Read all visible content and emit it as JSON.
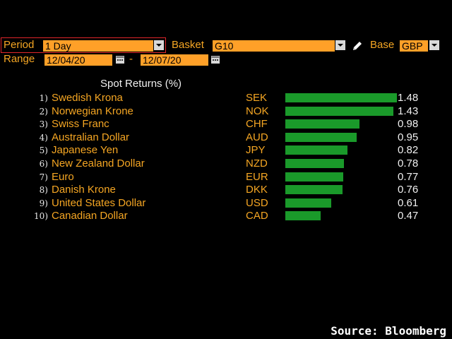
{
  "toolbar": {
    "period_label": "Period",
    "period_value": "1 Day",
    "basket_label": "Basket",
    "basket_value": "G10",
    "base_label": "Base",
    "base_value": "GBP",
    "range_label": "Range",
    "range_start": "12/04/20",
    "range_separator": "-",
    "range_end": "12/07/20"
  },
  "chart_data": {
    "type": "bar",
    "title": "Spot Returns (%)",
    "categories": [
      "Swedish Krona",
      "Norwegian Krone",
      "Swiss Franc",
      "Australian Dollar",
      "Japanese Yen",
      "New Zealand Dollar",
      "Euro",
      "Danish Krone",
      "United States Dollar",
      "Canadian Dollar"
    ],
    "ranks": [
      "1)",
      "2)",
      "3)",
      "4)",
      "5)",
      "6)",
      "7)",
      "8)",
      "9)",
      "10)"
    ],
    "codes": [
      "SEK",
      "NOK",
      "CHF",
      "AUD",
      "JPY",
      "NZD",
      "EUR",
      "DKK",
      "USD",
      "CAD"
    ],
    "values": [
      1.48,
      1.43,
      0.98,
      0.95,
      0.82,
      0.78,
      0.77,
      0.76,
      0.61,
      0.47
    ],
    "value_labels": [
      "1.48",
      "1.43",
      "0.98",
      "0.95",
      "0.82",
      "0.78",
      "0.77",
      "0.76",
      "0.61",
      "0.47"
    ],
    "bar_color": "#1a9a2a"
  },
  "colors": {
    "background": "#000000",
    "label": "#f5a623",
    "field": "#ffa028",
    "highlight_border": "#e0262a"
  },
  "footer": {
    "source": "Source: Bloomberg"
  }
}
